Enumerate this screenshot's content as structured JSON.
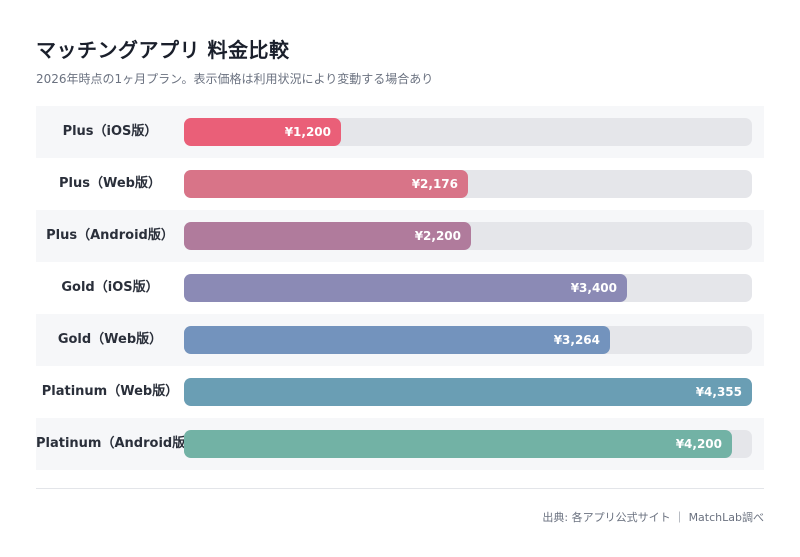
{
  "title": "マッチングアプリ 料金比較",
  "subtitle": "2026年時点の1ヶ月プラン。表示価格は利用状況により変動する場合あり",
  "source": "出典: 各アプリ公式サイト ｜ MatchLab調べ",
  "chart_data": {
    "type": "bar",
    "orientation": "horizontal",
    "xlim": [
      0,
      4355
    ],
    "grid": false,
    "categories": [
      "Plus（iOS版）",
      "Plus（Web版）",
      "Plus（Android版）",
      "Gold（iOS版）",
      "Gold（Web版）",
      "Platinum（Web版）",
      "Platinum（Android版）"
    ],
    "values": [
      1200,
      2176,
      2200,
      3400,
      3264,
      4355,
      4200
    ],
    "value_labels": [
      "¥1,200",
      "¥2,176",
      "¥2,200",
      "¥3,400",
      "¥3,264",
      "¥4,355",
      "¥4,200"
    ],
    "colors": [
      "#ea5f78",
      "#d87488",
      "#b07b9c",
      "#8b8ab5",
      "#7393bd",
      "#6a9eb4",
      "#72b2a5"
    ],
    "track_color": "#e5e6ea"
  }
}
